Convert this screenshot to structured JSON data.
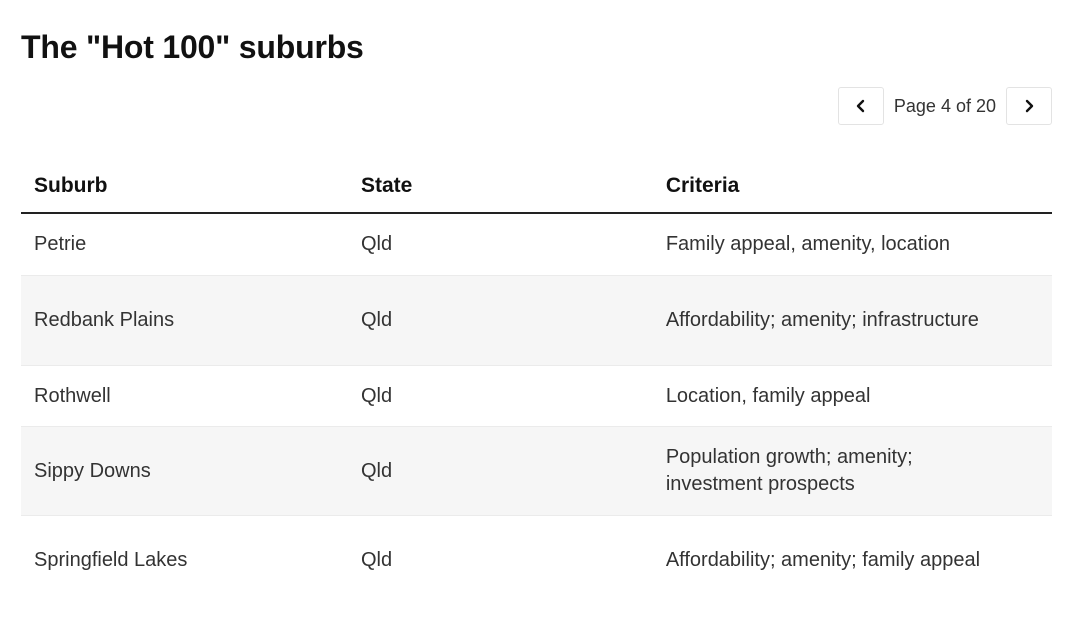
{
  "page": {
    "title": "The \"Hot 100\" suburbs"
  },
  "pager": {
    "label": "Page 4 of 20",
    "prev_icon": "chevron-left-icon",
    "next_icon": "chevron-right-icon"
  },
  "table": {
    "headers": {
      "suburb": "Suburb",
      "state": "State",
      "criteria": "Criteria"
    },
    "rows": [
      {
        "suburb": "Petrie",
        "state": "Qld",
        "criteria": "Family appeal, amenity, location"
      },
      {
        "suburb": "Redbank Plains",
        "state": "Qld",
        "criteria": "Affordability; amenity; infrastructure"
      },
      {
        "suburb": "Rothwell",
        "state": "Qld",
        "criteria": "Location, family appeal"
      },
      {
        "suburb": "Sippy Downs",
        "state": "Qld",
        "criteria": "Population growth; amenity; investment prospects"
      },
      {
        "suburb": "Springfield Lakes",
        "state": "Qld",
        "criteria": "Affordability; amenity; family appeal"
      }
    ]
  },
  "colors": {
    "header_rule": "#222222",
    "row_alt": "#f6f6f6",
    "row_divider": "#ebebeb"
  }
}
